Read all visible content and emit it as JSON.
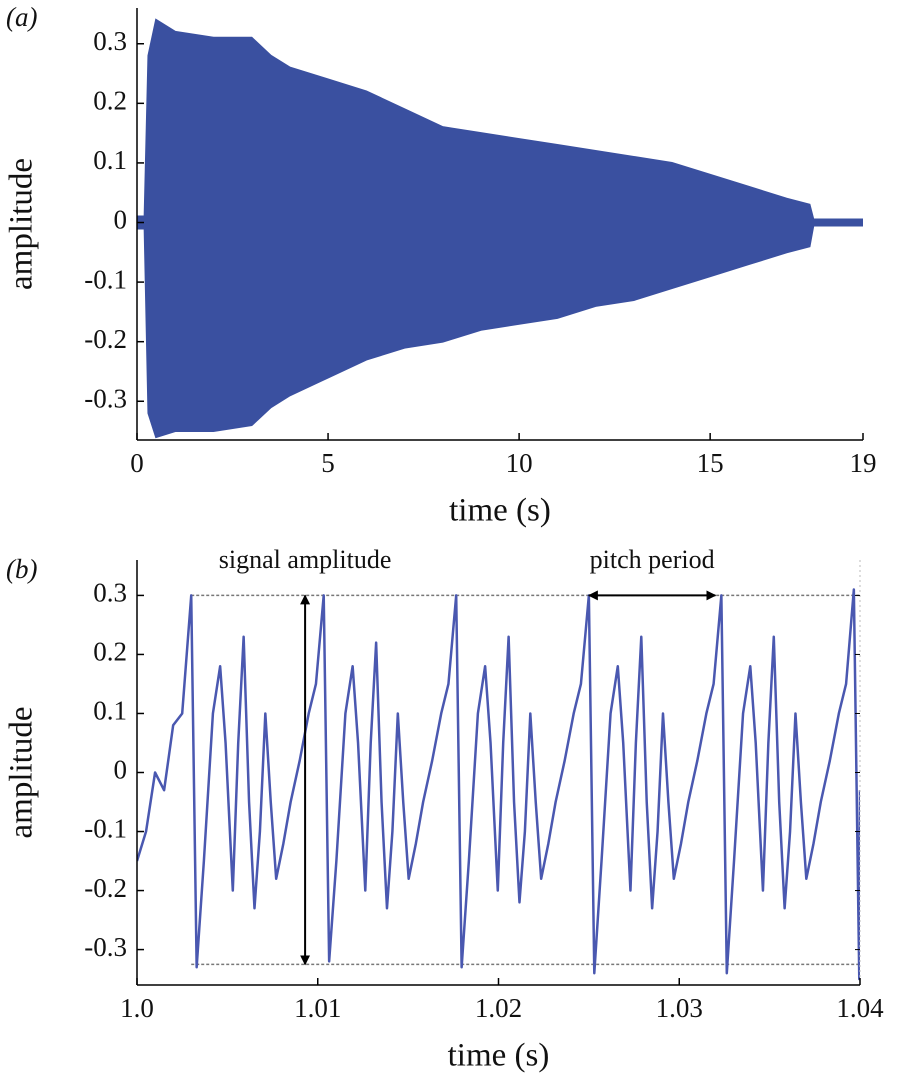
{
  "chart_data": [
    {
      "type": "area",
      "panel": "(a)",
      "xlabel": "time (s)",
      "ylabel": "amplitude",
      "color": "#3a50a0",
      "x": [
        0,
        0.2,
        0.3,
        0.5,
        1,
        2,
        3,
        3.5,
        4,
        5,
        6,
        7,
        8,
        9,
        10,
        11,
        12,
        13,
        14,
        15,
        16,
        17,
        17.6,
        17.7,
        19
      ],
      "high": [
        0.01,
        0.01,
        0.28,
        0.34,
        0.32,
        0.31,
        0.31,
        0.28,
        0.26,
        0.24,
        0.22,
        0.19,
        0.16,
        0.15,
        0.14,
        0.13,
        0.12,
        0.11,
        0.1,
        0.08,
        0.06,
        0.04,
        0.03,
        0.005,
        0.005
      ],
      "low": [
        -0.01,
        -0.01,
        -0.32,
        -0.36,
        -0.35,
        -0.35,
        -0.34,
        -0.31,
        -0.29,
        -0.26,
        -0.23,
        -0.21,
        -0.2,
        -0.18,
        -0.17,
        -0.16,
        -0.14,
        -0.13,
        -0.11,
        -0.09,
        -0.07,
        -0.05,
        -0.04,
        -0.005,
        -0.005
      ],
      "xlim": [
        0,
        19
      ],
      "xticks": [
        0,
        5,
        10,
        15,
        19
      ],
      "ylim": [
        -0.365,
        0.36
      ],
      "yticks": [
        -0.3,
        -0.2,
        -0.1,
        0,
        0.1,
        0.2,
        0.3
      ]
    },
    {
      "type": "line",
      "panel": "(b)",
      "xlabel": "time (s)",
      "ylabel": "amplitude",
      "color": "#4a58b0",
      "x": [
        1.0,
        1.0005,
        1.001,
        1.0015,
        1.002,
        1.0025,
        1.003,
        1.0033,
        1.0037,
        1.0042,
        1.0046,
        1.0049,
        1.0053,
        1.0056,
        1.0059,
        1.0062,
        1.0065,
        1.0068,
        1.0071,
        1.0074,
        1.0077,
        1.0081,
        1.0085,
        1.009,
        1.0095,
        1.0099,
        1.01033,
        1.01063,
        1.01103,
        1.01153,
        1.01193,
        1.01223,
        1.01263,
        1.01293,
        1.01323,
        1.01353,
        1.01383,
        1.01413,
        1.01443,
        1.01473,
        1.01503,
        1.01543,
        1.01583,
        1.01633,
        1.01683,
        1.01723,
        1.01766,
        1.01796,
        1.01836,
        1.01886,
        1.01926,
        1.01956,
        1.01996,
        1.02026,
        1.02056,
        1.02086,
        1.02116,
        1.02146,
        1.02176,
        1.02206,
        1.02236,
        1.02276,
        1.02316,
        1.02366,
        1.02416,
        1.02456,
        1.025,
        1.0253,
        1.0257,
        1.0262,
        1.0266,
        1.0269,
        1.0273,
        1.0276,
        1.0279,
        1.0282,
        1.0285,
        1.0288,
        1.0291,
        1.0294,
        1.0297,
        1.0301,
        1.0305,
        1.031,
        1.0315,
        1.0319,
        1.03233,
        1.03263,
        1.03303,
        1.03353,
        1.03393,
        1.03423,
        1.03463,
        1.03493,
        1.03523,
        1.03553,
        1.03583,
        1.03613,
        1.03643,
        1.03673,
        1.03703,
        1.03743,
        1.03783,
        1.03833,
        1.03883,
        1.03923,
        1.03966,
        1.03996,
        1.04
      ],
      "values": [
        -0.15,
        -0.1,
        0.0,
        -0.03,
        0.08,
        0.1,
        0.3,
        -0.33,
        -0.15,
        0.1,
        0.18,
        0.05,
        -0.2,
        0.05,
        0.23,
        -0.05,
        -0.23,
        -0.1,
        0.1,
        -0.05,
        -0.18,
        -0.12,
        -0.05,
        0.02,
        0.1,
        0.15,
        0.3,
        -0.32,
        -0.15,
        0.1,
        0.18,
        0.05,
        -0.2,
        0.05,
        0.22,
        -0.05,
        -0.23,
        -0.1,
        0.1,
        -0.05,
        -0.18,
        -0.12,
        -0.05,
        0.02,
        0.1,
        0.15,
        0.3,
        -0.33,
        -0.15,
        0.1,
        0.18,
        0.05,
        -0.2,
        0.05,
        0.23,
        -0.05,
        -0.22,
        -0.1,
        0.1,
        -0.05,
        -0.18,
        -0.12,
        -0.05,
        0.02,
        0.1,
        0.15,
        0.3,
        -0.34,
        -0.15,
        0.1,
        0.18,
        0.05,
        -0.2,
        0.05,
        0.23,
        -0.05,
        -0.23,
        -0.1,
        0.1,
        -0.05,
        -0.18,
        -0.12,
        -0.05,
        0.02,
        0.1,
        0.15,
        0.3,
        -0.34,
        -0.15,
        0.1,
        0.18,
        0.05,
        -0.2,
        0.05,
        0.23,
        -0.05,
        -0.23,
        -0.1,
        0.1,
        -0.05,
        -0.18,
        -0.12,
        -0.05,
        0.02,
        0.1,
        0.15,
        0.31,
        -0.35,
        -0.03
      ],
      "xlim": [
        1.0,
        1.04
      ],
      "xticks": [
        {
          "value": 1.0,
          "label": "1.0"
        },
        1.01,
        1.02,
        1.03,
        1.04
      ],
      "ylim": [
        -0.36,
        0.36
      ],
      "yticks": [
        -0.3,
        -0.2,
        -0.1,
        0,
        0.1,
        0.2,
        0.3
      ],
      "hlines": [
        {
          "y": 0.3,
          "x": [
            1.003,
            1.04
          ]
        },
        {
          "y": -0.325,
          "x": [
            1.003,
            1.04
          ]
        }
      ],
      "arrows": [
        {
          "label": "signal amplitude",
          "x": [
            1.0093,
            1.0093
          ],
          "y": [
            0.3,
            -0.325
          ]
        },
        {
          "label": "pitch period",
          "x": [
            1.025,
            1.032
          ],
          "y": [
            0.3,
            0.3
          ]
        }
      ]
    }
  ]
}
